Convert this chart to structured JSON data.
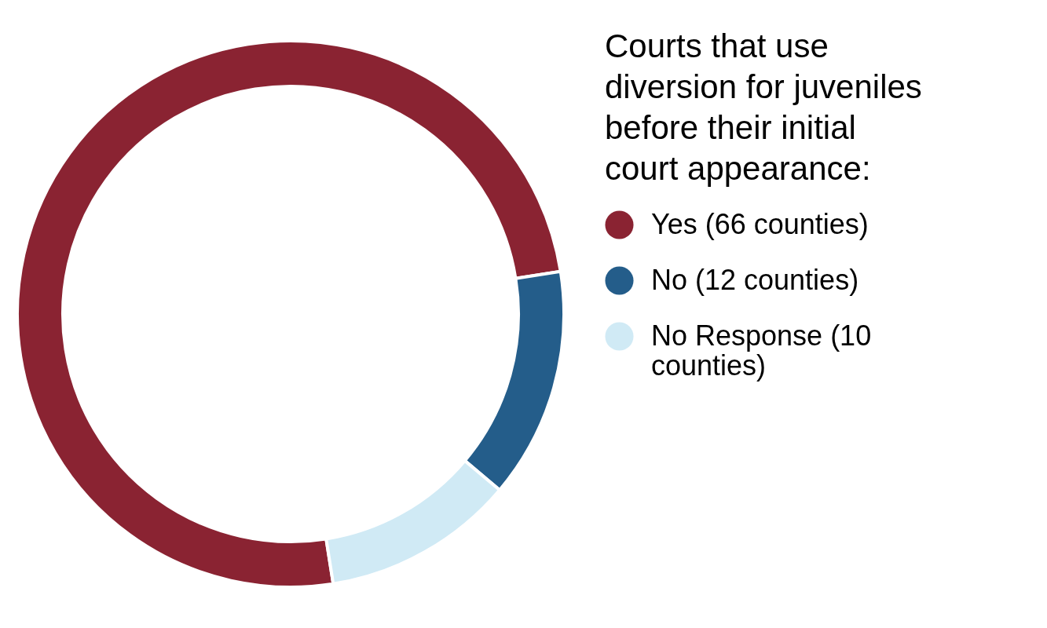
{
  "chart_data": {
    "type": "donut",
    "legend_title": "Courts that use diversion for juveniles before their initial court appearance:",
    "categories": [
      "Yes (66 counties)",
      "No (12 counties)",
      "No Response (10 counties)"
    ],
    "values": [
      66,
      12,
      10
    ],
    "colors": [
      "#8a2332",
      "#245d8a",
      "#d0eaf5"
    ],
    "legend": "right"
  }
}
